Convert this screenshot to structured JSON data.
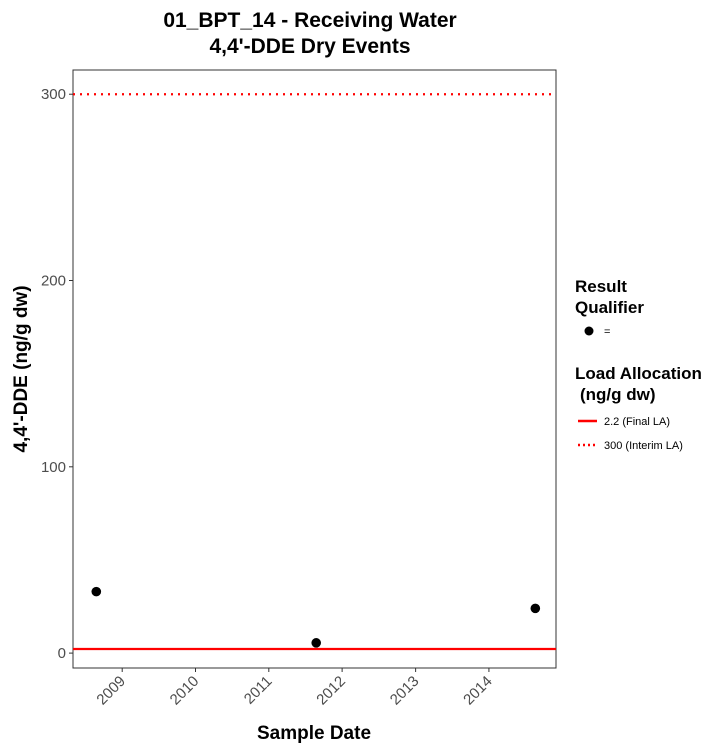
{
  "chart_data": {
    "type": "scatter",
    "title": [
      "01_BPT_14 - Receiving Water",
      "4,4'-DDE   Dry Events"
    ],
    "xlabel": "Sample Date",
    "ylabel": "4,4'-DDE (ng/g dw)",
    "xlim": [
      "2008-05-01",
      "2014-12-01"
    ],
    "ylim": [
      -8,
      313
    ],
    "x_ticks": [
      "2009-01-01",
      "2010-01-01",
      "2011-01-01",
      "2012-01-01",
      "2013-01-01",
      "2014-01-01"
    ],
    "x_tick_labels": [
      "2009",
      "2010",
      "2011",
      "2012",
      "2013",
      "2014"
    ],
    "y_ticks": [
      0,
      100,
      200,
      300
    ],
    "y_tick_labels": [
      "0",
      "100",
      "200",
      "300"
    ],
    "grid": false,
    "legend_position": "right",
    "series": [
      {
        "name": "=",
        "marker": "circle",
        "color": "#000000",
        "points": [
          {
            "x": "2008-08-25",
            "y": 33
          },
          {
            "x": "2011-08-25",
            "y": 5.5
          },
          {
            "x": "2014-08-20",
            "y": 24
          }
        ]
      }
    ],
    "reference_lines": [
      {
        "label": "2.2 (Final LA)",
        "y": 2.2,
        "color": "#ff0000",
        "style": "solid"
      },
      {
        "label": "300 (Interim LA)",
        "y": 300,
        "color": "#ff0000",
        "style": "dotted"
      }
    ],
    "legend": {
      "qualifier_title": [
        "Result",
        "Qualifier"
      ],
      "allocation_title": [
        "Load Allocation",
        "(ng/g dw)"
      ]
    }
  }
}
